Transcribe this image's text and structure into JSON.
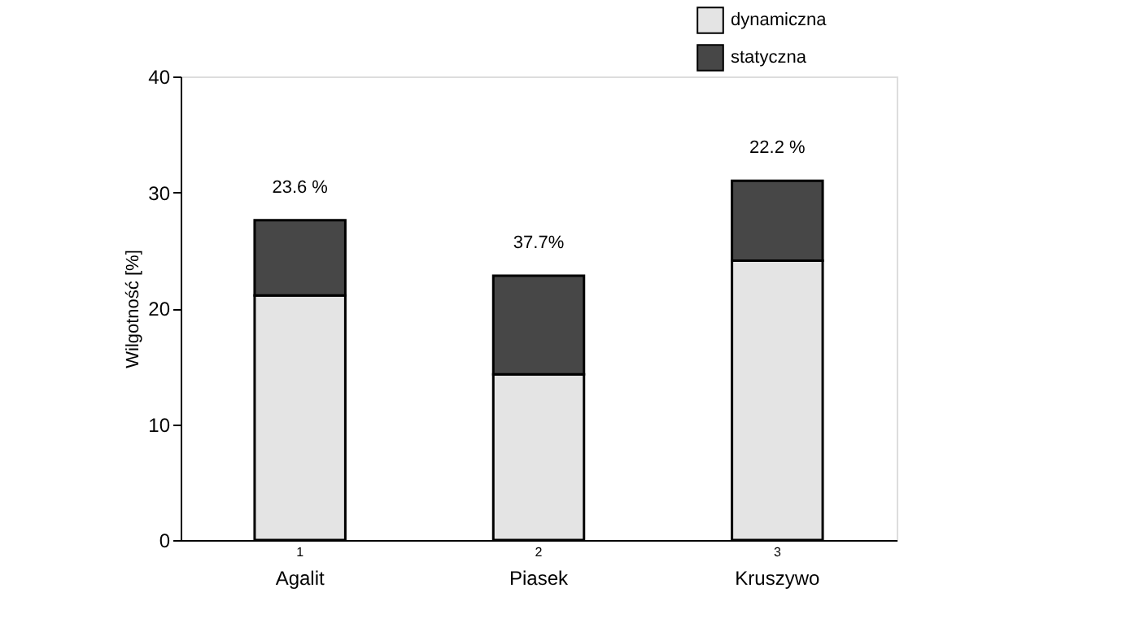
{
  "chart_data": {
    "type": "bar",
    "stacked": true,
    "ylabel": "Wilgotność [%]",
    "categories": [
      "Agalit",
      "Piasek",
      "Kruszywo"
    ],
    "series": [
      {
        "name": "dynamiczna",
        "color": "#e4e4e4",
        "values": [
          21.1,
          14.3,
          24.1
        ]
      },
      {
        "name": "statyczna",
        "color": "#474747",
        "values": [
          6.5,
          8.5,
          6.9
        ]
      }
    ],
    "ylim": [
      0,
      40
    ],
    "yticks": [
      0,
      10,
      20,
      30,
      40
    ],
    "grid": false,
    "legend": "top right",
    "annotations": [
      "23.6 %",
      "37.7%",
      "22.2 %",
      "1",
      "2",
      "3"
    ]
  }
}
